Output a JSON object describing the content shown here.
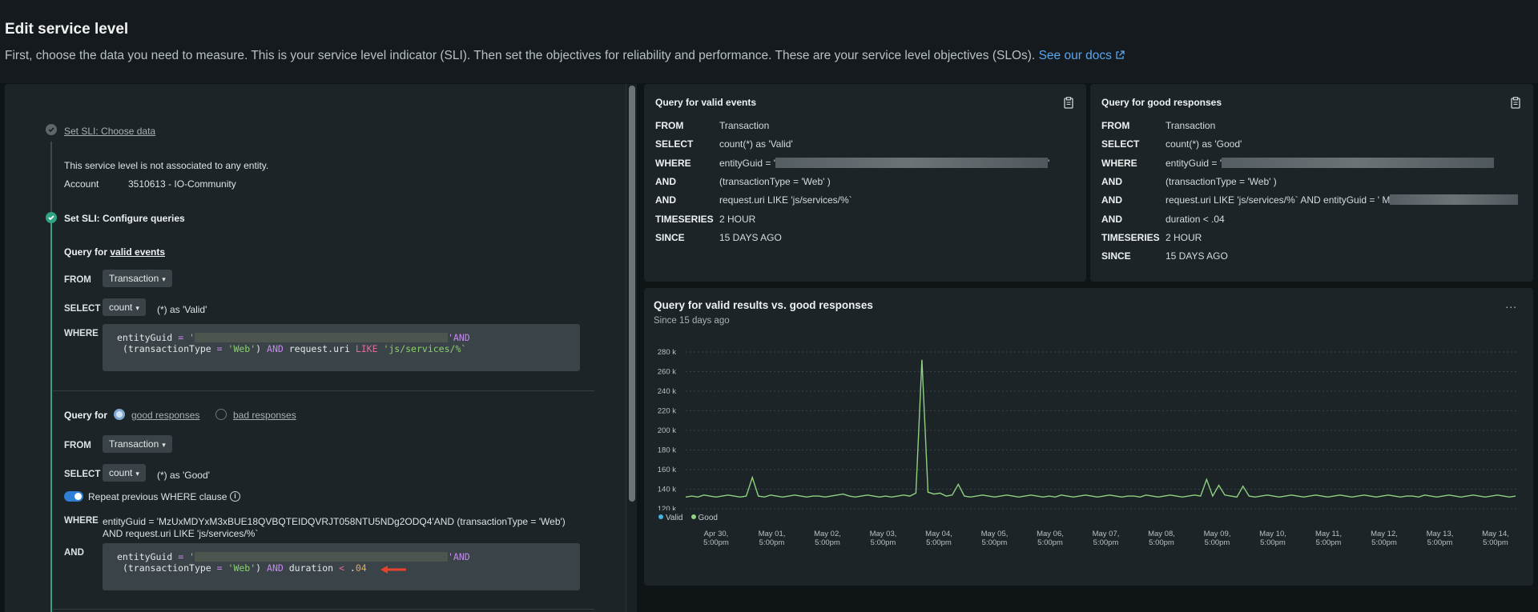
{
  "header": {
    "title": "Edit service level",
    "description": "First, choose the data you need to measure. This is your service level indicator (SLI). Then set the objectives for reliability and performance. These are your service level objectives (SLOs).",
    "docs_link": "See our docs"
  },
  "left": {
    "step1_title": "Set SLI: Choose data",
    "no_entity_text": "This service level is not associated to any entity.",
    "account_label": "Account",
    "account_value": "3510613 - IO-Community",
    "step2_title": "Set SLI: Configure queries",
    "valid_events": {
      "heading_prefix": "Query for",
      "heading_link": "valid events",
      "from_label": "FROM",
      "from_value": "Transaction",
      "select_label": "SELECT",
      "select_value": "count",
      "select_suffix": "(*)  as 'Valid'",
      "where_label": "WHERE",
      "code_line1_a": "entityGuid",
      "code_line1_b": "=",
      "code_line1_c": "'",
      "code_line1_d": "'AND",
      "code_line2_a": "(transactionType",
      "code_line2_b": "=",
      "code_line2_c": "'Web'",
      "code_line2_d": ") ",
      "code_line2_e": "AND",
      "code_line2_f": " request.uri ",
      "code_line2_g": "LIKE",
      "code_line2_h": " 'js/services/%`"
    },
    "good_responses": {
      "heading_prefix": "Query for",
      "radio_good": "good responses",
      "radio_bad": "bad responses",
      "from_label": "FROM",
      "from_value": "Transaction",
      "select_label": "SELECT",
      "select_value": "count",
      "select_suffix": "(*)  as 'Good'",
      "repeat_label": "Repeat previous WHERE clause",
      "where_label": "WHERE",
      "where_text_1": "entityGuid = 'MzUxMDYxM3xBUE18QVBQTEIDQVRJT058NTU5NDg2ODQ4'AND (transactionType = 'Web')",
      "where_text_2": "AND request.uri LIKE 'js/services/%`",
      "and_label": "AND",
      "code_line1_a": "entityGuid",
      "code_line1_b": "=",
      "code_line1_c": "'",
      "code_line1_d": "'AND",
      "code_line2_a": "(transactionType",
      "code_line2_b": "=",
      "code_line2_c": "'Web'",
      "code_line2_d": ") ",
      "code_line2_e": "AND",
      "code_line2_f": " duration ",
      "code_line2_g": "<",
      "code_line2_h": " .",
      "code_line2_i": "04"
    }
  },
  "valid_card": {
    "title": "Query for valid events",
    "rows": [
      {
        "kw": "FROM",
        "val": "Transaction"
      },
      {
        "kw": "SELECT",
        "val": "count(*) as 'Valid'"
      },
      {
        "kw": "WHERE",
        "val": "entityGuid = '"
      },
      {
        "kw": "AND",
        "val": "(transactionType = 'Web' )"
      },
      {
        "kw": "AND",
        "val": "request.uri LIKE 'js/services/%`"
      },
      {
        "kw": "TIMESERIES",
        "val": "2 HOUR"
      },
      {
        "kw": "SINCE",
        "val": "15 DAYS AGO"
      }
    ],
    "where_tail": "'"
  },
  "good_card": {
    "title": "Query for good responses",
    "rows": [
      {
        "kw": "FROM",
        "val": "Transaction"
      },
      {
        "kw": "SELECT",
        "val": "count(*) as 'Good'"
      },
      {
        "kw": "WHERE",
        "val": "entityGuid = '"
      },
      {
        "kw": "AND",
        "val": "(transactionType = 'Web' )"
      },
      {
        "kw": "AND",
        "val": "request.uri LIKE 'js/services/%` AND entityGuid = ' M"
      },
      {
        "kw": "AND",
        "val": "duration < .04"
      },
      {
        "kw": "TIMESERIES",
        "val": "2 HOUR"
      },
      {
        "kw": "SINCE",
        "val": "15 DAYS AGO"
      }
    ]
  },
  "chart_card": {
    "title": "Query for valid results vs. good responses",
    "subtitle": "Since 15 days ago",
    "menu": "..."
  },
  "chart_data": {
    "type": "line",
    "yticks": [
      "280 k",
      "260 k",
      "240 k",
      "220 k",
      "200 k",
      "180 k",
      "160 k",
      "140 k",
      "120 k"
    ],
    "ytick_values": [
      280,
      260,
      240,
      220,
      200,
      180,
      160,
      140,
      120
    ],
    "ylim": [
      120,
      280
    ],
    "xticks": [
      [
        "Apr 30,",
        "5:00pm"
      ],
      [
        "May 01,",
        "5:00pm"
      ],
      [
        "May 02,",
        "5:00pm"
      ],
      [
        "May 03,",
        "5:00pm"
      ],
      [
        "May 04,",
        "5:00pm"
      ],
      [
        "May 05,",
        "5:00pm"
      ],
      [
        "May 06,",
        "5:00pm"
      ],
      [
        "May 07,",
        "5:00pm"
      ],
      [
        "May 08,",
        "5:00pm"
      ],
      [
        "May 09,",
        "5:00pm"
      ],
      [
        "May 10,",
        "5:00pm"
      ],
      [
        "May 11,",
        "5:00pm"
      ],
      [
        "May 12,",
        "5:00pm"
      ],
      [
        "May 13,",
        "5:00pm"
      ],
      [
        "May 14,",
        "5:00pm"
      ]
    ],
    "series": [
      {
        "name": "Valid",
        "color": "#3fb5e0"
      },
      {
        "name": "Good",
        "color": "#8fd17f",
        "values": [
          132,
          133,
          132,
          134,
          133,
          132,
          133,
          134,
          133,
          132,
          133,
          152,
          133,
          132,
          134,
          133,
          132,
          133,
          134,
          133,
          132,
          133,
          133,
          132,
          133,
          134,
          135,
          133,
          132,
          133,
          134,
          133,
          132,
          133,
          132,
          133,
          134,
          133,
          136,
          272,
          137,
          135,
          136,
          133,
          134,
          145,
          133,
          132,
          133,
          134,
          133,
          132,
          133,
          134,
          133,
          132,
          133,
          134,
          133,
          132,
          133,
          132,
          134,
          133,
          132,
          133,
          134,
          133,
          132,
          133,
          134,
          133,
          132,
          133,
          133,
          132,
          134,
          133,
          132,
          133,
          134,
          133,
          132,
          133,
          134,
          133,
          150,
          133,
          144,
          134,
          133,
          132,
          143,
          133,
          132,
          133,
          134,
          133,
          132,
          133,
          134,
          133,
          132,
          133,
          134,
          133,
          132,
          133,
          134,
          133,
          132,
          133,
          134,
          133,
          132,
          133,
          134,
          133,
          132,
          133,
          133,
          132,
          134,
          133,
          132,
          133,
          134,
          133,
          132,
          133,
          134,
          133,
          132,
          133,
          134,
          133,
          132,
          133
        ]
      }
    ],
    "legend_position": "bottom-left"
  }
}
